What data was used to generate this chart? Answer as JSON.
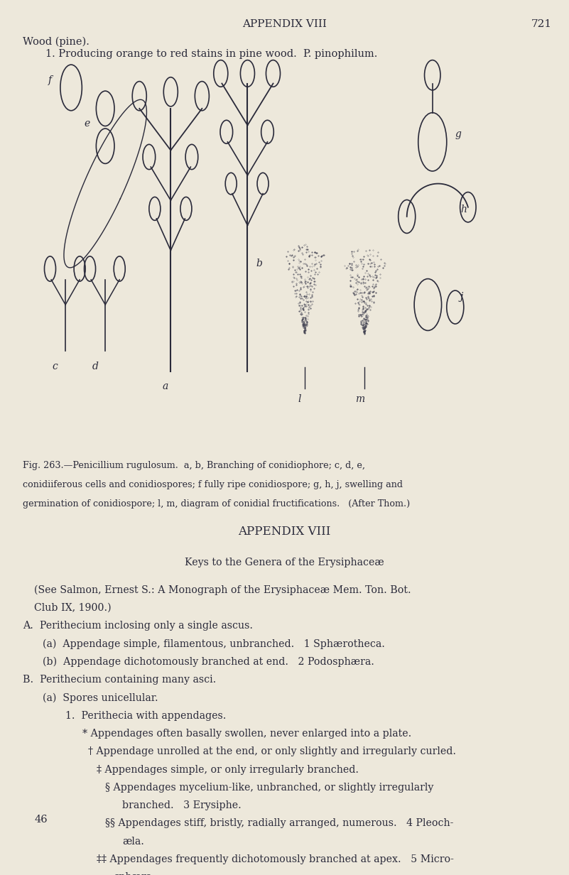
{
  "bg_color": "#ede8db",
  "text_color": "#2a2a3a",
  "page_width": 8.01,
  "page_height": 12.32,
  "header_text": "APPENDIX VIII",
  "page_number": "721",
  "line1": "Wood (pine).",
  "line2": "1. Producing orange to red stains in pine wood.  P. pinophilum.",
  "fig_caption_line1": "Fig. 263.—Penicillium rugulosum.  a, b, Branching of conidiophore; c, d, e,",
  "fig_caption_line2": "conidiiferous cells and conidiospores; f fully ripe conidiospore; g, h, j, swelling and",
  "fig_caption_line3": "germination of conidiospore; l, m, diagram of conidial fructifications.   (After Thom.)",
  "section_header": "APPENDIX VIII",
  "subsection_header": "Keys to the Genera of the Erysiphaceæ",
  "see_line1": "(See Salmon, Ernest S.: A Monograph of the Erysiphaceæ Mem. Ton. Bot.",
  "see_line2": "Club IX, 1900.)",
  "text_lines": [
    {
      "indent": 0.04,
      "text": "A.  Perithecium inclosing only a single ascus."
    },
    {
      "indent": 0.075,
      "text": "(a)  Appendage simple, filamentous, unbranched.   1 Sphærotheca."
    },
    {
      "indent": 0.075,
      "text": "(b)  Appendage dichotomously branched at end.   2 Podosphæra."
    },
    {
      "indent": 0.04,
      "text": "B.  Perithecium containing many asci."
    },
    {
      "indent": 0.075,
      "text": "(a)  Spores unicellular."
    },
    {
      "indent": 0.115,
      "text": "1.  Perithecia with appendages."
    },
    {
      "indent": 0.145,
      "text": "* Appendages often basally swollen, never enlarged into a plate."
    },
    {
      "indent": 0.155,
      "text": "† Appendage unrolled at the end, or only slightly and irregularly curled."
    },
    {
      "indent": 0.17,
      "text": "‡ Appendages simple, or only irregularly branched."
    },
    {
      "indent": 0.185,
      "text": "§ Appendages mycelium-like, unbranched, or slightly irregularly"
    },
    {
      "indent": 0.215,
      "text": "branched.   3 Erysiphe."
    },
    {
      "indent": 0.185,
      "text": "§§ Appendages stiff, bristly, radially arranged, numerous.   4 Pleoch-"
    },
    {
      "indent": 0.215,
      "text": "æla."
    },
    {
      "indent": 0.17,
      "text": "‡‡ Appendages frequently dichotomously branched at apex.   5 Micro-"
    },
    {
      "indent": 0.2,
      "text": "sphæra."
    }
  ],
  "page_num_bottom": "46"
}
